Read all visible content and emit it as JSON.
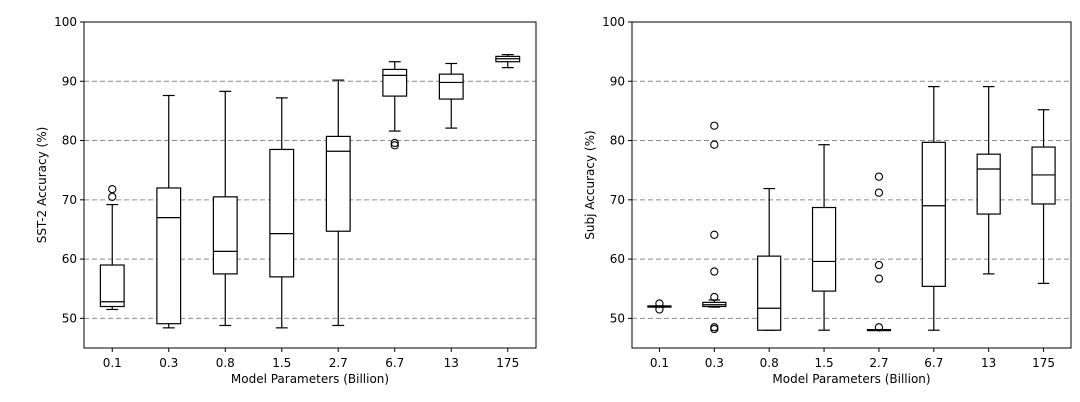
{
  "chart_data": [
    {
      "type": "box",
      "xlabel": "Model Parameters (Billion)",
      "ylabel": "SST-2 Accuracy (%)",
      "ylim": [
        45,
        100
      ],
      "yticks": [
        50,
        60,
        70,
        80,
        90,
        100
      ],
      "grid": "horizontal dashed",
      "categories": [
        "0.1",
        "0.3",
        "0.8",
        "1.5",
        "2.7",
        "6.7",
        "13",
        "175"
      ],
      "boxes": [
        {
          "whisker_low": 51.5,
          "q1": 52.0,
          "median": 52.8,
          "q3": 59.0,
          "whisker_high": 69.2,
          "outliers": [
            70.5,
            71.8
          ]
        },
        {
          "whisker_low": 48.4,
          "q1": 49.1,
          "median": 67.0,
          "q3": 72.0,
          "whisker_high": 87.6,
          "outliers": []
        },
        {
          "whisker_low": 48.8,
          "q1": 57.5,
          "median": 61.3,
          "q3": 70.5,
          "whisker_high": 88.3,
          "outliers": []
        },
        {
          "whisker_low": 48.4,
          "q1": 57.0,
          "median": 64.3,
          "q3": 78.5,
          "whisker_high": 87.2,
          "outliers": []
        },
        {
          "whisker_low": 48.8,
          "q1": 64.7,
          "median": 78.2,
          "q3": 80.7,
          "whisker_high": 90.2,
          "outliers": []
        },
        {
          "whisker_low": 81.6,
          "q1": 87.5,
          "median": 91.0,
          "q3": 92.0,
          "whisker_high": 93.3,
          "outliers": [
            79.6,
            79.2
          ]
        },
        {
          "whisker_low": 82.1,
          "q1": 87.0,
          "median": 89.8,
          "q3": 91.2,
          "whisker_high": 93.0,
          "outliers": []
        },
        {
          "whisker_low": 92.3,
          "q1": 93.3,
          "median": 93.8,
          "q3": 94.2,
          "whisker_high": 94.5,
          "outliers": []
        }
      ]
    },
    {
      "type": "box",
      "xlabel": "Model Parameters (Billion)",
      "ylabel": "Subj Accuracy (%)",
      "ylim": [
        45,
        100
      ],
      "yticks": [
        50,
        60,
        70,
        80,
        90,
        100
      ],
      "grid": "horizontal dashed",
      "categories": [
        "0.1",
        "0.3",
        "0.8",
        "1.5",
        "2.7",
        "6.7",
        "13",
        "175"
      ],
      "boxes": [
        {
          "whisker_low": 51.9,
          "q1": 51.9,
          "median": 52.0,
          "q3": 52.1,
          "whisker_high": 52.1,
          "outliers": [
            51.5,
            52.5
          ]
        },
        {
          "whisker_low": 51.9,
          "q1": 52.0,
          "median": 52.3,
          "q3": 52.7,
          "whisker_high": 53.1,
          "outliers": [
            48.2,
            48.5,
            53.6,
            57.9,
            64.1,
            79.3,
            82.5
          ]
        },
        {
          "whisker_low": 48.0,
          "q1": 48.0,
          "median": 51.7,
          "q3": 60.5,
          "whisker_high": 71.9,
          "outliers": []
        },
        {
          "whisker_low": 48.0,
          "q1": 54.6,
          "median": 59.6,
          "q3": 68.7,
          "whisker_high": 79.3,
          "outliers": []
        },
        {
          "whisker_low": 48.0,
          "q1": 48.0,
          "median": 48.0,
          "q3": 48.1,
          "whisker_high": 48.1,
          "outliers": [
            48.5,
            56.7,
            59.0,
            71.2,
            73.9
          ]
        },
        {
          "whisker_low": 48.0,
          "q1": 55.4,
          "median": 69.0,
          "q3": 79.7,
          "whisker_high": 89.1,
          "outliers": []
        },
        {
          "whisker_low": 57.5,
          "q1": 67.6,
          "median": 75.2,
          "q3": 77.7,
          "whisker_high": 89.1,
          "outliers": []
        },
        {
          "whisker_low": 55.9,
          "q1": 69.3,
          "median": 74.2,
          "q3": 78.9,
          "whisker_high": 85.2,
          "outliers": []
        }
      ]
    }
  ]
}
